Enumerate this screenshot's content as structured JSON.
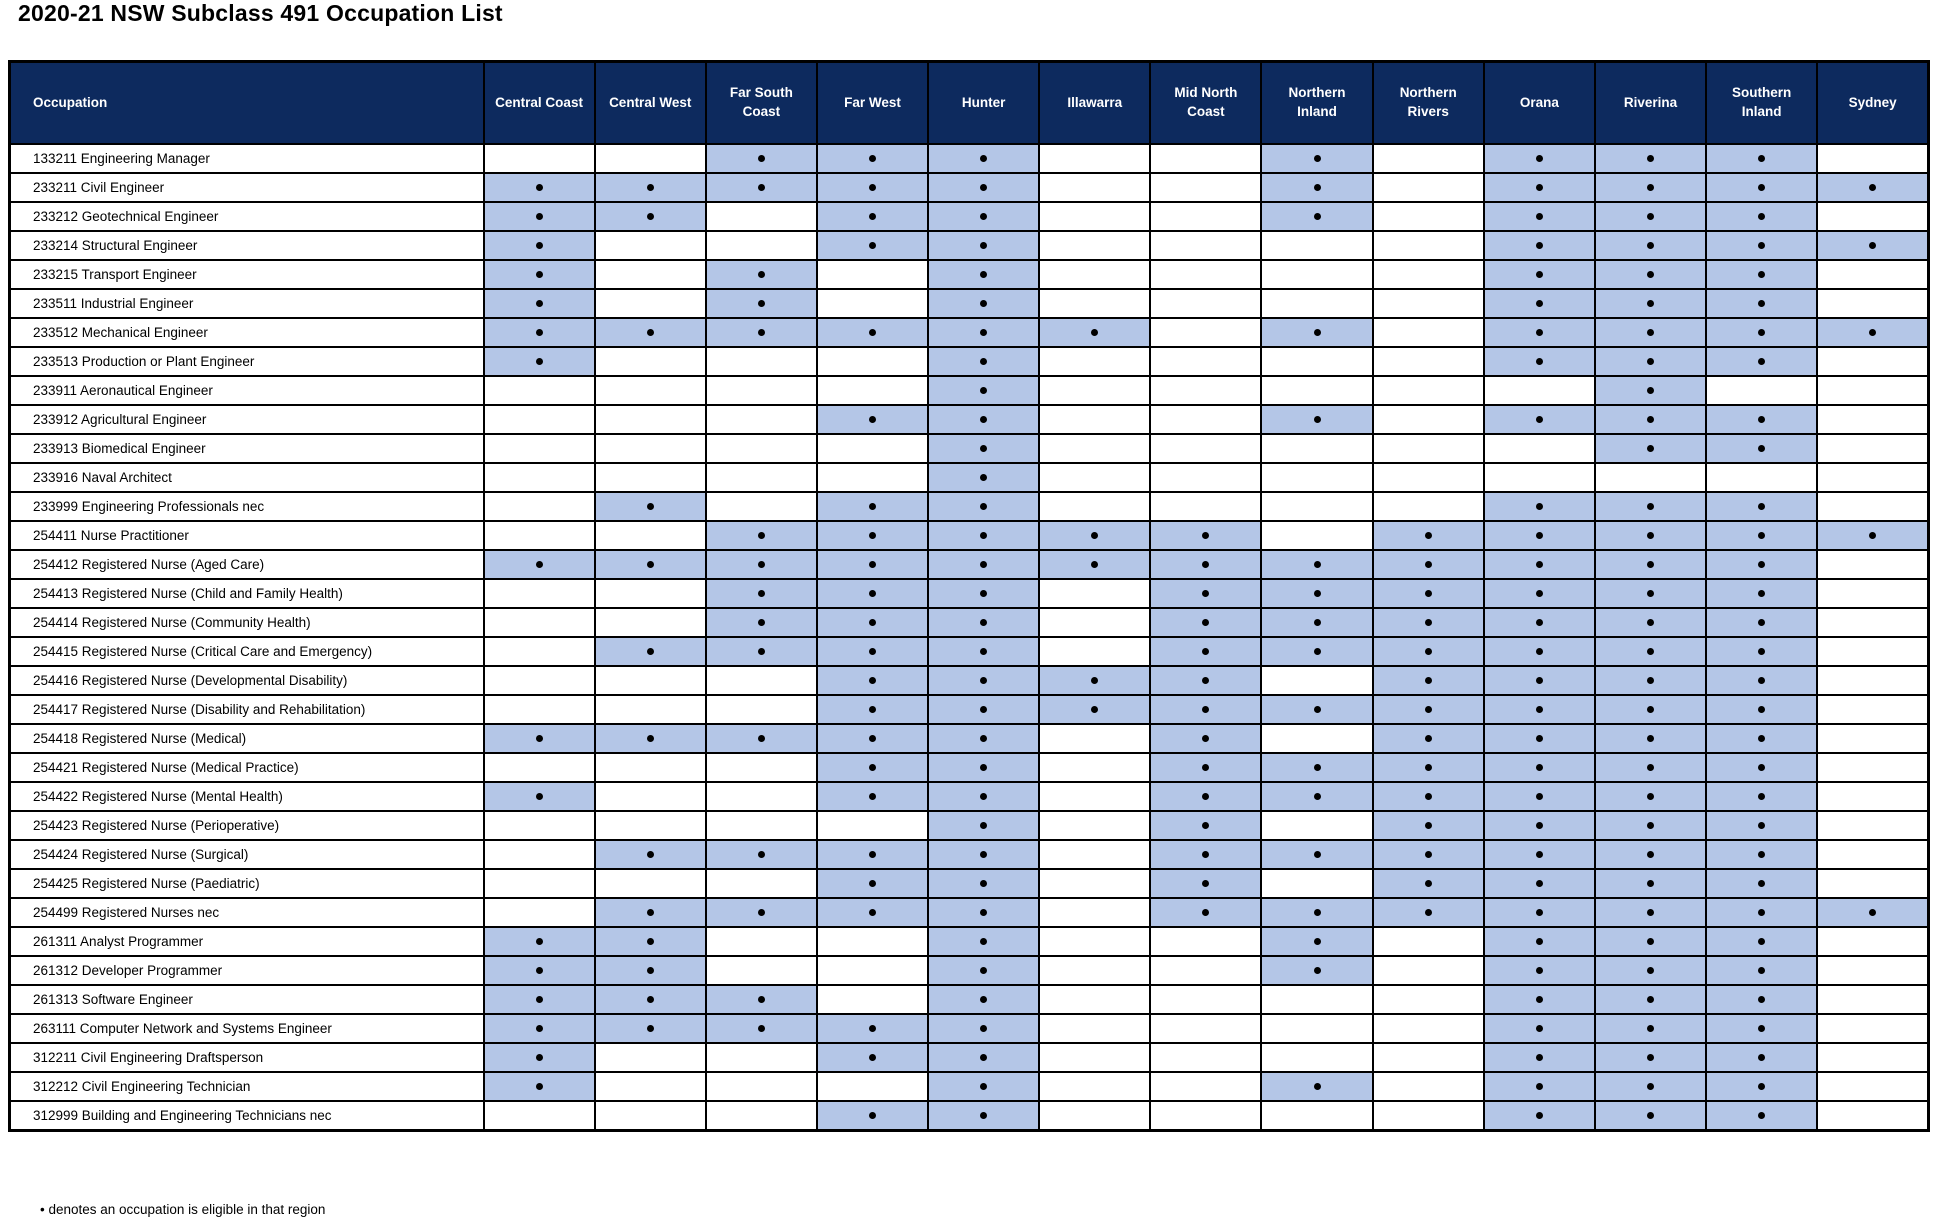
{
  "title": "2020-21 NSW Subclass 491 Occupation List",
  "footnote": "• denotes an occupation is eligible in that region",
  "colors": {
    "header_bg": "#0d2a5e",
    "eligible_bg": "#b4c6e7",
    "dot": "#000000",
    "border": "#000000"
  },
  "legend": {
    "dot_meaning": "eligible"
  },
  "table": {
    "occupation_header": "Occupation",
    "regions": [
      "Central Coast",
      "Central West",
      "Far South Coast",
      "Far West",
      "Hunter",
      "Illawarra",
      "Mid North Coast",
      "Northern Inland",
      "Northern Rivers",
      "Orana",
      "Riverina",
      "Southern Inland",
      "Sydney"
    ],
    "rows": [
      {
        "occupation": "133211 Engineering Manager",
        "eligible": [
          0,
          0,
          1,
          1,
          1,
          0,
          0,
          1,
          0,
          1,
          1,
          1,
          0
        ]
      },
      {
        "occupation": "233211 Civil Engineer",
        "eligible": [
          1,
          1,
          1,
          1,
          1,
          0,
          0,
          1,
          0,
          1,
          1,
          1,
          1
        ]
      },
      {
        "occupation": "233212 Geotechnical Engineer",
        "eligible": [
          1,
          1,
          0,
          1,
          1,
          0,
          0,
          1,
          0,
          1,
          1,
          1,
          0
        ]
      },
      {
        "occupation": "233214 Structural Engineer",
        "eligible": [
          1,
          0,
          0,
          1,
          1,
          0,
          0,
          0,
          0,
          1,
          1,
          1,
          1
        ]
      },
      {
        "occupation": "233215 Transport Engineer",
        "eligible": [
          1,
          0,
          1,
          0,
          1,
          0,
          0,
          0,
          0,
          1,
          1,
          1,
          0
        ]
      },
      {
        "occupation": "233511 Industrial Engineer",
        "eligible": [
          1,
          0,
          1,
          0,
          1,
          0,
          0,
          0,
          0,
          1,
          1,
          1,
          0
        ]
      },
      {
        "occupation": "233512 Mechanical Engineer",
        "eligible": [
          1,
          1,
          1,
          1,
          1,
          1,
          0,
          1,
          0,
          1,
          1,
          1,
          1
        ]
      },
      {
        "occupation": "233513 Production or Plant Engineer",
        "eligible": [
          1,
          0,
          0,
          0,
          1,
          0,
          0,
          0,
          0,
          1,
          1,
          1,
          0
        ]
      },
      {
        "occupation": "233911 Aeronautical Engineer",
        "eligible": [
          0,
          0,
          0,
          0,
          1,
          0,
          0,
          0,
          0,
          0,
          1,
          0,
          0
        ]
      },
      {
        "occupation": "233912 Agricultural Engineer",
        "eligible": [
          0,
          0,
          0,
          1,
          1,
          0,
          0,
          1,
          0,
          1,
          1,
          1,
          0
        ]
      },
      {
        "occupation": "233913 Biomedical Engineer",
        "eligible": [
          0,
          0,
          0,
          0,
          1,
          0,
          0,
          0,
          0,
          0,
          1,
          1,
          0
        ]
      },
      {
        "occupation": "233916 Naval Architect",
        "eligible": [
          0,
          0,
          0,
          0,
          1,
          0,
          0,
          0,
          0,
          0,
          0,
          0,
          0
        ]
      },
      {
        "occupation": "233999 Engineering Professionals nec",
        "eligible": [
          0,
          1,
          0,
          1,
          1,
          0,
          0,
          0,
          0,
          1,
          1,
          1,
          0
        ]
      },
      {
        "occupation": "254411 Nurse Practitioner",
        "eligible": [
          0,
          0,
          1,
          1,
          1,
          1,
          1,
          0,
          1,
          1,
          1,
          1,
          1
        ]
      },
      {
        "occupation": "254412 Registered Nurse (Aged Care)",
        "eligible": [
          1,
          1,
          1,
          1,
          1,
          1,
          1,
          1,
          1,
          1,
          1,
          1,
          0
        ]
      },
      {
        "occupation": "254413 Registered Nurse (Child and Family Health)",
        "eligible": [
          0,
          0,
          1,
          1,
          1,
          0,
          1,
          1,
          1,
          1,
          1,
          1,
          0
        ]
      },
      {
        "occupation": "254414 Registered Nurse (Community Health)",
        "eligible": [
          0,
          0,
          1,
          1,
          1,
          0,
          1,
          1,
          1,
          1,
          1,
          1,
          0
        ]
      },
      {
        "occupation": "254415 Registered Nurse (Critical Care and Emergency)",
        "eligible": [
          0,
          1,
          1,
          1,
          1,
          0,
          1,
          1,
          1,
          1,
          1,
          1,
          0
        ]
      },
      {
        "occupation": "254416 Registered Nurse (Developmental Disability)",
        "eligible": [
          0,
          0,
          0,
          1,
          1,
          1,
          1,
          0,
          1,
          1,
          1,
          1,
          0
        ]
      },
      {
        "occupation": "254417 Registered Nurse (Disability and Rehabilitation)",
        "eligible": [
          0,
          0,
          0,
          1,
          1,
          1,
          1,
          1,
          1,
          1,
          1,
          1,
          0
        ]
      },
      {
        "occupation": "254418 Registered Nurse (Medical)",
        "eligible": [
          1,
          1,
          1,
          1,
          1,
          0,
          1,
          0,
          1,
          1,
          1,
          1,
          0
        ]
      },
      {
        "occupation": "254421 Registered Nurse (Medical Practice)",
        "eligible": [
          0,
          0,
          0,
          1,
          1,
          0,
          1,
          1,
          1,
          1,
          1,
          1,
          0
        ]
      },
      {
        "occupation": "254422 Registered Nurse (Mental Health)",
        "eligible": [
          1,
          0,
          0,
          1,
          1,
          0,
          1,
          1,
          1,
          1,
          1,
          1,
          0
        ]
      },
      {
        "occupation": "254423 Registered Nurse (Perioperative)",
        "eligible": [
          0,
          0,
          0,
          0,
          1,
          0,
          1,
          0,
          1,
          1,
          1,
          1,
          0
        ]
      },
      {
        "occupation": "254424 Registered Nurse (Surgical)",
        "eligible": [
          0,
          1,
          1,
          1,
          1,
          0,
          1,
          1,
          1,
          1,
          1,
          1,
          0
        ]
      },
      {
        "occupation": "254425 Registered Nurse (Paediatric)",
        "eligible": [
          0,
          0,
          0,
          1,
          1,
          0,
          1,
          0,
          1,
          1,
          1,
          1,
          0
        ]
      },
      {
        "occupation": "254499 Registered Nurses nec",
        "eligible": [
          0,
          1,
          1,
          1,
          1,
          0,
          1,
          1,
          1,
          1,
          1,
          1,
          1
        ]
      },
      {
        "occupation": "261311 Analyst Programmer",
        "eligible": [
          1,
          1,
          0,
          0,
          1,
          0,
          0,
          1,
          0,
          1,
          1,
          1,
          0
        ]
      },
      {
        "occupation": "261312 Developer Programmer",
        "eligible": [
          1,
          1,
          0,
          0,
          1,
          0,
          0,
          1,
          0,
          1,
          1,
          1,
          0
        ]
      },
      {
        "occupation": "261313 Software Engineer",
        "eligible": [
          1,
          1,
          1,
          0,
          1,
          0,
          0,
          0,
          0,
          1,
          1,
          1,
          0
        ]
      },
      {
        "occupation": "263111 Computer Network and Systems Engineer",
        "eligible": [
          1,
          1,
          1,
          1,
          1,
          0,
          0,
          0,
          0,
          1,
          1,
          1,
          0
        ]
      },
      {
        "occupation": "312211 Civil Engineering Draftsperson",
        "eligible": [
          1,
          0,
          0,
          1,
          1,
          0,
          0,
          0,
          0,
          1,
          1,
          1,
          0
        ]
      },
      {
        "occupation": "312212 Civil Engineering Technician",
        "eligible": [
          1,
          0,
          0,
          0,
          1,
          0,
          0,
          1,
          0,
          1,
          1,
          1,
          0
        ]
      },
      {
        "occupation": "312999 Building and Engineering Technicians nec",
        "eligible": [
          0,
          0,
          0,
          1,
          1,
          0,
          0,
          0,
          0,
          1,
          1,
          1,
          0
        ]
      }
    ]
  }
}
